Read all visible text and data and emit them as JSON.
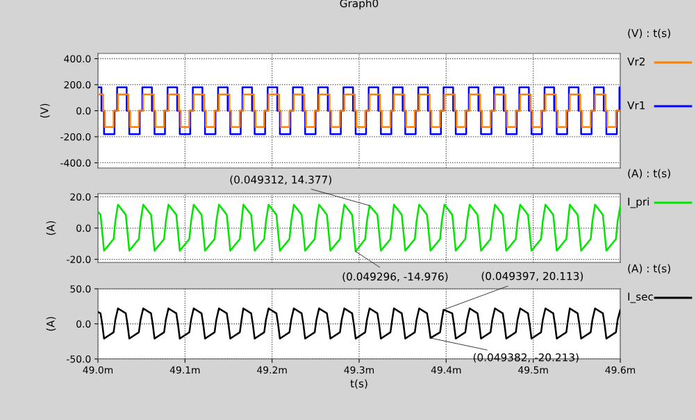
{
  "chart_data": [
    {
      "type": "step",
      "title": "Graph0",
      "ylabel": "(V)",
      "legend_title": "(V) : t(s)",
      "legend": "right",
      "grid": true,
      "tick_labels": "y",
      "xlim": [
        49.0,
        49.6
      ],
      "xticks": [
        {
          "value": 49.0,
          "label": null
        },
        {
          "value": 49.1,
          "label": null
        },
        {
          "value": 49.2,
          "label": null
        },
        {
          "value": 49.3,
          "label": null
        },
        {
          "value": 49.4,
          "label": null
        },
        {
          "value": 49.5,
          "label": null
        },
        {
          "value": 49.6,
          "label": null
        }
      ],
      "ylim": [
        -440,
        440
      ],
      "yticks": [
        {
          "value": -400,
          "label": "-400.0"
        },
        {
          "value": -200,
          "label": "-200.0"
        },
        {
          "value": 0,
          "label": "0.0"
        },
        {
          "value": 200,
          "label": "200.0"
        },
        {
          "value": 400,
          "label": "400.0"
        }
      ],
      "series": [
        {
          "name": "Vr2",
          "color": "#ff8000",
          "x": [
            49.0,
            49.006,
            49.008,
            49.018,
            49.023,
            49.035,
            49.037,
            49.047,
            49.052,
            49.064,
            49.066,
            49.076,
            49.081,
            49.093,
            49.095,
            49.105,
            49.11,
            49.122,
            49.124,
            49.134,
            49.139,
            49.151,
            49.153,
            49.163,
            49.167,
            49.179,
            49.181,
            49.191,
            49.196,
            49.208,
            49.21,
            49.22,
            49.225,
            49.237,
            49.239,
            49.249,
            49.254,
            49.266,
            49.268,
            49.278,
            49.283,
            49.295,
            49.297,
            49.307,
            49.312,
            49.324,
            49.326,
            49.336,
            49.34,
            49.352,
            49.354,
            49.364,
            49.369,
            49.381,
            49.383,
            49.393,
            49.398,
            49.41,
            49.412,
            49.422,
            49.427,
            49.439,
            49.441,
            49.451,
            49.456,
            49.468,
            49.47,
            49.48,
            49.485,
            49.497,
            49.499,
            49.509,
            49.514,
            49.526,
            49.528,
            49.538,
            49.542,
            49.554,
            49.556,
            49.566,
            49.571,
            49.583,
            49.585,
            49.595,
            49.6
          ],
          "values": [
            125,
            0,
            -125,
            0,
            125,
            0,
            -125,
            0,
            125,
            0,
            -125,
            0,
            125,
            0,
            -125,
            0,
            125,
            0,
            -125,
            0,
            125,
            0,
            -125,
            0,
            125,
            0,
            -125,
            0,
            125,
            0,
            -125,
            0,
            125,
            0,
            -125,
            0,
            125,
            0,
            -125,
            0,
            125,
            0,
            -125,
            0,
            125,
            0,
            -125,
            0,
            125,
            0,
            -125,
            0,
            125,
            0,
            -125,
            0,
            125,
            0,
            -125,
            0,
            125,
            0,
            -125,
            0,
            125,
            0,
            -125,
            0,
            125,
            0,
            -125,
            0,
            125,
            0,
            -125,
            0,
            125,
            0,
            -125,
            0,
            125,
            0,
            -125,
            0,
            0
          ]
        },
        {
          "name": "Vr1",
          "color": "#0000ff",
          "x": [
            49.0,
            49.004,
            49.007,
            49.019,
            49.022,
            49.033,
            49.036,
            49.048,
            49.051,
            49.062,
            49.065,
            49.077,
            49.08,
            49.091,
            49.094,
            49.106,
            49.109,
            49.12,
            49.123,
            49.135,
            49.138,
            49.149,
            49.152,
            49.164,
            49.166,
            49.177,
            49.18,
            49.192,
            49.195,
            49.206,
            49.209,
            49.221,
            49.224,
            49.235,
            49.238,
            49.25,
            49.253,
            49.264,
            49.267,
            49.279,
            49.282,
            49.293,
            49.296,
            49.308,
            49.311,
            49.322,
            49.325,
            49.337,
            49.339,
            49.35,
            49.353,
            49.365,
            49.368,
            49.379,
            49.382,
            49.394,
            49.397,
            49.408,
            49.411,
            49.423,
            49.426,
            49.437,
            49.44,
            49.452,
            49.455,
            49.466,
            49.469,
            49.481,
            49.484,
            49.495,
            49.498,
            49.51,
            49.513,
            49.524,
            49.527,
            49.539,
            49.541,
            49.552,
            49.555,
            49.567,
            49.57,
            49.581,
            49.584,
            49.596,
            49.599,
            49.6
          ],
          "values": [
            180,
            0,
            -180,
            0,
            180,
            0,
            -180,
            0,
            180,
            0,
            -180,
            0,
            180,
            0,
            -180,
            0,
            180,
            0,
            -180,
            0,
            180,
            0,
            -180,
            0,
            180,
            0,
            -180,
            0,
            180,
            0,
            -180,
            0,
            180,
            0,
            -180,
            0,
            180,
            0,
            -180,
            0,
            180,
            0,
            -180,
            0,
            180,
            0,
            -180,
            0,
            180,
            0,
            -180,
            0,
            180,
            0,
            -180,
            0,
            180,
            0,
            -180,
            0,
            180,
            0,
            -180,
            0,
            180,
            0,
            -180,
            0,
            180,
            0,
            -180,
            0,
            180,
            0,
            -180,
            0,
            180,
            0,
            -180,
            0,
            180,
            0,
            -180,
            0,
            180,
            180
          ]
        }
      ]
    },
    {
      "type": "line",
      "ylabel": "(A)",
      "legend_title": "(A) : t(s)",
      "legend": "right",
      "grid": true,
      "tick_labels": "y",
      "xlim": [
        49.0,
        49.6
      ],
      "xticks": [
        {
          "value": 49.0,
          "label": null
        },
        {
          "value": 49.1,
          "label": null
        },
        {
          "value": 49.2,
          "label": null
        },
        {
          "value": 49.3,
          "label": null
        },
        {
          "value": 49.4,
          "label": null
        },
        {
          "value": 49.5,
          "label": null
        },
        {
          "value": 49.6,
          "label": null
        }
      ],
      "ylim": [
        -22,
        22
      ],
      "yticks": [
        {
          "value": -20,
          "label": "-20.0"
        },
        {
          "value": 0,
          "label": "0.0"
        },
        {
          "value": 20,
          "label": "20.0"
        }
      ],
      "annotations": [
        {
          "text": "(0.049312, 14.377)",
          "x": 49.312,
          "y": 14.377
        },
        {
          "text": "(0.049296, -14.976)",
          "x": 49.296,
          "y": -14.976
        }
      ],
      "series": [
        {
          "name": "I_pri",
          "color": "#00e600",
          "x": [
            49.0,
            49.003,
            49.005,
            49.007,
            49.018,
            49.02,
            49.023,
            49.032,
            49.034,
            49.036,
            49.047,
            49.049,
            49.052,
            49.061,
            49.063,
            49.065,
            49.076,
            49.078,
            49.081,
            49.09,
            49.092,
            49.094,
            49.105,
            49.107,
            49.11,
            49.119,
            49.121,
            49.123,
            49.134,
            49.136,
            49.139,
            49.148,
            49.15,
            49.152,
            49.163,
            49.165,
            49.167,
            49.176,
            49.178,
            49.18,
            49.191,
            49.193,
            49.196,
            49.205,
            49.207,
            49.209,
            49.22,
            49.222,
            49.225,
            49.234,
            49.236,
            49.238,
            49.249,
            49.251,
            49.254,
            49.263,
            49.265,
            49.267,
            49.278,
            49.28,
            49.283,
            49.292,
            49.294,
            49.296,
            49.307,
            49.309,
            49.312,
            49.321,
            49.323,
            49.325,
            49.336,
            49.338,
            49.34,
            49.349,
            49.351,
            49.353,
            49.364,
            49.366,
            49.369,
            49.378,
            49.38,
            49.382,
            49.393,
            49.395,
            49.398,
            49.407,
            49.409,
            49.411,
            49.422,
            49.424,
            49.427,
            49.436,
            49.438,
            49.44,
            49.451,
            49.453,
            49.456,
            49.465,
            49.467,
            49.469,
            49.48,
            49.482,
            49.485,
            49.494,
            49.496,
            49.498,
            49.509,
            49.511,
            49.514,
            49.523,
            49.525,
            49.527,
            49.538,
            49.54,
            49.542,
            49.551,
            49.553,
            49.555,
            49.566,
            49.568,
            49.571,
            49.58,
            49.582,
            49.584,
            49.595,
            49.597,
            49.6
          ],
          "values": [
            10.5,
            8.5,
            -3,
            -14.5,
            -7,
            4.5,
            15,
            8.5,
            -3,
            -14.5,
            -7,
            4.5,
            15,
            8.5,
            -3,
            -14.5,
            -7,
            4.5,
            15,
            8.5,
            -3,
            -14.5,
            -7,
            4.5,
            15,
            8.5,
            -3,
            -14.5,
            -7,
            4.5,
            15,
            8.5,
            -3,
            -14.5,
            -7,
            4.5,
            15,
            8.5,
            -3,
            -14.5,
            -7,
            4.5,
            15,
            8.5,
            -3,
            -14.5,
            -7,
            4.5,
            15,
            8.5,
            -3,
            -14.5,
            -7,
            4.5,
            15,
            8.5,
            -3,
            -14.5,
            -7,
            4.5,
            15,
            8.5,
            -3,
            -14.976,
            -7,
            4.5,
            14.377,
            8.5,
            -3,
            -14.5,
            -7,
            4.5,
            15,
            8.5,
            -3,
            -14.5,
            -7,
            4.5,
            15,
            8.5,
            -3,
            -14.5,
            -7,
            4.5,
            15,
            8.5,
            -3,
            -14.5,
            -7,
            4.5,
            15,
            8.5,
            -3,
            -14.5,
            -7,
            4.5,
            15,
            8.5,
            -3,
            -14.5,
            -7,
            4.5,
            15,
            8.5,
            -3,
            -14.5,
            -7,
            4.5,
            15,
            8.5,
            -3,
            -14.5,
            -7,
            4.5,
            15,
            8.5,
            -3,
            -14.5,
            -7,
            4.5,
            15,
            8.5,
            -3,
            -14.5,
            -7,
            4.5,
            14
          ]
        }
      ]
    },
    {
      "type": "line",
      "ylabel": "(A)",
      "xlabel": "t(s)",
      "legend_title": "(A) : t(s)",
      "legend": "right",
      "grid": true,
      "xlim": [
        49.0,
        49.6
      ],
      "xticks": [
        {
          "value": 49.0,
          "label": "49.0m"
        },
        {
          "value": 49.1,
          "label": "49.1m"
        },
        {
          "value": 49.2,
          "label": "49.2m"
        },
        {
          "value": 49.3,
          "label": "49.3m"
        },
        {
          "value": 49.4,
          "label": "49.4m"
        },
        {
          "value": 49.5,
          "label": "49.5m"
        },
        {
          "value": 49.6,
          "label": "49.6m"
        }
      ],
      "ylim": [
        -50,
        50
      ],
      "yticks": [
        {
          "value": -50,
          "label": "-50.0"
        },
        {
          "value": 0,
          "label": "0.0"
        },
        {
          "value": 50,
          "label": "50.0"
        }
      ],
      "annotations": [
        {
          "text": "(0.049397, 20.113)",
          "x": 49.397,
          "y": 20.113
        },
        {
          "text": "(0.049382, -20.213)",
          "x": 49.382,
          "y": -20.213
        }
      ],
      "series": [
        {
          "name": "I_sec",
          "color": "#000000",
          "x": [
            49.0,
            49.003,
            49.005,
            49.007,
            49.018,
            49.02,
            49.023,
            49.032,
            49.034,
            49.036,
            49.047,
            49.049,
            49.052,
            49.061,
            49.063,
            49.065,
            49.076,
            49.078,
            49.081,
            49.09,
            49.092,
            49.094,
            49.105,
            49.107,
            49.11,
            49.119,
            49.121,
            49.123,
            49.134,
            49.136,
            49.139,
            49.148,
            49.15,
            49.152,
            49.163,
            49.165,
            49.167,
            49.176,
            49.178,
            49.18,
            49.191,
            49.193,
            49.196,
            49.205,
            49.207,
            49.209,
            49.22,
            49.222,
            49.225,
            49.234,
            49.236,
            49.238,
            49.249,
            49.251,
            49.254,
            49.263,
            49.265,
            49.267,
            49.278,
            49.28,
            49.283,
            49.292,
            49.294,
            49.296,
            49.307,
            49.309,
            49.312,
            49.321,
            49.323,
            49.325,
            49.336,
            49.338,
            49.34,
            49.349,
            49.351,
            49.353,
            49.364,
            49.366,
            49.369,
            49.378,
            49.38,
            49.382,
            49.393,
            49.395,
            49.397,
            49.407,
            49.409,
            49.411,
            49.422,
            49.424,
            49.427,
            49.436,
            49.438,
            49.44,
            49.451,
            49.453,
            49.456,
            49.465,
            49.467,
            49.469,
            49.48,
            49.482,
            49.485,
            49.494,
            49.496,
            49.498,
            49.509,
            49.511,
            49.514,
            49.523,
            49.525,
            49.527,
            49.538,
            49.54,
            49.542,
            49.551,
            49.553,
            49.555,
            49.566,
            49.568,
            49.571,
            49.58,
            49.582,
            49.584,
            49.595,
            49.597,
            49.6
          ],
          "values": [
            17,
            15,
            -1,
            -21,
            -12,
            6,
            22,
            15,
            -1,
            -21,
            -12,
            6,
            22,
            15,
            -1,
            -21,
            -12,
            6,
            22,
            15,
            -1,
            -21,
            -12,
            6,
            22,
            15,
            -1,
            -21,
            -12,
            6,
            22,
            15,
            -1,
            -21,
            -12,
            6,
            22,
            15,
            -1,
            -21,
            -12,
            6,
            22,
            15,
            -1,
            -21,
            -12,
            6,
            22,
            15,
            -1,
            -21,
            -12,
            6,
            22,
            15,
            -1,
            -21,
            -12,
            6,
            22,
            15,
            -1,
            -21,
            -12,
            6,
            22,
            15,
            -1,
            -21,
            -12,
            6,
            22,
            15,
            -1,
            -21,
            -12,
            6,
            22,
            15,
            -1,
            -20.213,
            -12,
            6,
            20.113,
            15,
            -1,
            -21,
            -12,
            6,
            22,
            15,
            -1,
            -21,
            -12,
            6,
            22,
            15,
            -1,
            -21,
            -12,
            6,
            22,
            15,
            -1,
            -21,
            -12,
            6,
            22,
            15,
            -1,
            -21,
            -12,
            6,
            22,
            15,
            -1,
            -21,
            -12,
            6,
            22,
            15,
            -1,
            -21,
            -12,
            6,
            20
          ]
        }
      ]
    }
  ]
}
